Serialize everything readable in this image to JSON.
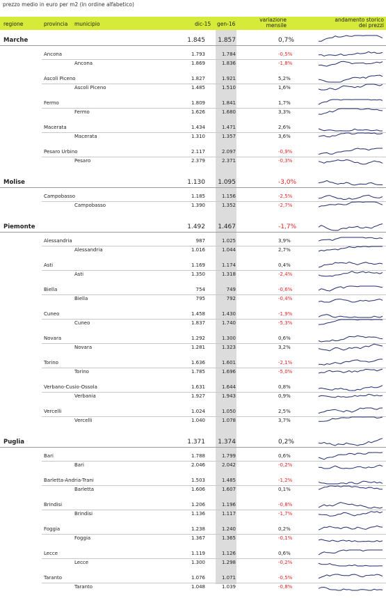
{
  "caption": "prezzo medio in euro per m2 (in ordine alfabetico)",
  "header": {
    "regione": "regione",
    "provincia": "provincia",
    "municipio": "municipio",
    "col1": "dic-15",
    "col2": "gen-16",
    "variazione_1": "variazione",
    "variazione_2": "mensile",
    "andamento_1": "andamento storico",
    "andamento_2": "dei prezzi"
  },
  "colors": {
    "header_bg": "#d6ea3a",
    "column_highlight": "#dcdcdc",
    "negative": "#e62121",
    "sparkline": "#1f2a6e"
  },
  "regions": [
    {
      "name": "Marche",
      "v1": "1.845",
      "v2": "1.857",
      "var": "0,7%",
      "provinces": [
        {
          "name": "Ancona",
          "v1": "1.793",
          "v2": "1.784",
          "var": "-0,5%",
          "city": {
            "name": "Ancona",
            "v1": "1.869",
            "v2": "1.836",
            "var": "-1,8%"
          }
        },
        {
          "name": "Ascoli Piceno",
          "v1": "1.827",
          "v2": "1.921",
          "var": "5,2%",
          "city": {
            "name": "Ascoli Piceno",
            "v1": "1.485",
            "v2": "1.510",
            "var": "1,6%"
          }
        },
        {
          "name": "Fermo",
          "v1": "1.809",
          "v2": "1.841",
          "var": "1,7%",
          "city": {
            "name": "Fermo",
            "v1": "1.626",
            "v2": "1.680",
            "var": "3,3%"
          }
        },
        {
          "name": "Macerata",
          "v1": "1.434",
          "v2": "1.471",
          "var": "2,6%",
          "city": {
            "name": "Macerata",
            "v1": "1.310",
            "v2": "1.357",
            "var": "3,6%"
          }
        },
        {
          "name": "Pesaro Urbino",
          "v1": "2.117",
          "v2": "2.097",
          "var": "-0,9%",
          "city": {
            "name": "Pesaro",
            "v1": "2.379",
            "v2": "2.371",
            "var": "-0,3%"
          }
        }
      ]
    },
    {
      "name": "Molise",
      "v1": "1.130",
      "v2": "1.095",
      "var": "-3,0%",
      "provinces": [
        {
          "name": "Campobasso",
          "v1": "1.185",
          "v2": "1.156",
          "var": "-2,5%",
          "city": {
            "name": "Campobasso",
            "v1": "1.390",
            "v2": "1.352",
            "var": "-2,7%"
          }
        }
      ]
    },
    {
      "name": "Piemonte",
      "v1": "1.492",
      "v2": "1.467",
      "var": "-1,7%",
      "provinces": [
        {
          "name": "Alessandria",
          "v1": "987",
          "v2": "1.025",
          "var": "3,9%",
          "city": {
            "name": "Alessandria",
            "v1": "1.016",
            "v2": "1.044",
            "var": "2,7%"
          }
        },
        {
          "name": "Asti",
          "v1": "1.169",
          "v2": "1.174",
          "var": "0,4%",
          "city": {
            "name": "Asti",
            "v1": "1.350",
            "v2": "1.318",
            "var": "-2,4%"
          }
        },
        {
          "name": "Biella",
          "v1": "754",
          "v2": "749",
          "var": "-0,6%",
          "city": {
            "name": "Biella",
            "v1": "795",
            "v2": "792",
            "var": "-0,4%"
          }
        },
        {
          "name": "Cuneo",
          "v1": "1.458",
          "v2": "1.430",
          "var": "-1,9%",
          "city": {
            "name": "Cuneo",
            "v1": "1.837",
            "v2": "1.740",
            "var": "-5,3%"
          }
        },
        {
          "name": "Novara",
          "v1": "1.292",
          "v2": "1.300",
          "var": "0,6%",
          "city": {
            "name": "Novara",
            "v1": "1.281",
            "v2": "1.323",
            "var": "3,2%"
          }
        },
        {
          "name": "Torino",
          "v1": "1.636",
          "v2": "1.601",
          "var": "-2,1%",
          "city": {
            "name": "Torino",
            "v1": "1.785",
            "v2": "1.696",
            "var": "-5,0%"
          }
        },
        {
          "name": "Verbano-Cusio-Ossola",
          "v1": "1.631",
          "v2": "1.644",
          "var": "0,8%",
          "city": {
            "name": "Verbania",
            "v1": "1.927",
            "v2": "1.943",
            "var": "0,9%"
          }
        },
        {
          "name": "Vercelli",
          "v1": "1.024",
          "v2": "1.050",
          "var": "2,5%",
          "city": {
            "name": "Vercelli",
            "v1": "1.040",
            "v2": "1.078",
            "var": "3,7%"
          }
        }
      ]
    },
    {
      "name": "Puglia",
      "v1": "1.371",
      "v2": "1.374",
      "var": "0,2%",
      "provinces": [
        {
          "name": "Bari",
          "v1": "1.788",
          "v2": "1.799",
          "var": "0,6%",
          "city": {
            "name": "Bari",
            "v1": "2.046",
            "v2": "2.042",
            "var": "-0,2%"
          }
        },
        {
          "name": "Barletta-Andria-Trani",
          "v1": "1.503",
          "v2": "1.485",
          "var": "-1,2%",
          "city": {
            "name": "Barletta",
            "v1": "1.606",
            "v2": "1.607",
            "var": "0,1%"
          }
        },
        {
          "name": "Brindisi",
          "v1": "1.206",
          "v2": "1.196",
          "var": "-0,8%",
          "city": {
            "name": "Brindisi",
            "v1": "1.136",
            "v2": "1.117",
            "var": "-1,7%"
          }
        },
        {
          "name": "Foggia",
          "v1": "1.238",
          "v2": "1.240",
          "var": "0,2%",
          "city": {
            "name": "Foggia",
            "v1": "1.367",
            "v2": "1.365",
            "var": "-0,1%"
          }
        },
        {
          "name": "Lecce",
          "v1": "1.119",
          "v2": "1.126",
          "var": "0,6%",
          "city": {
            "name": "Lecce",
            "v1": "1.300",
            "v2": "1.298",
            "var": "-0,2%"
          }
        },
        {
          "name": "Taranto",
          "v1": "1.076",
          "v2": "1.071",
          "var": "-0,5%",
          "city": {
            "name": "Taranto",
            "v1": "1.048",
            "v2": "1.039",
            "var": "-0,8%"
          }
        }
      ]
    }
  ]
}
